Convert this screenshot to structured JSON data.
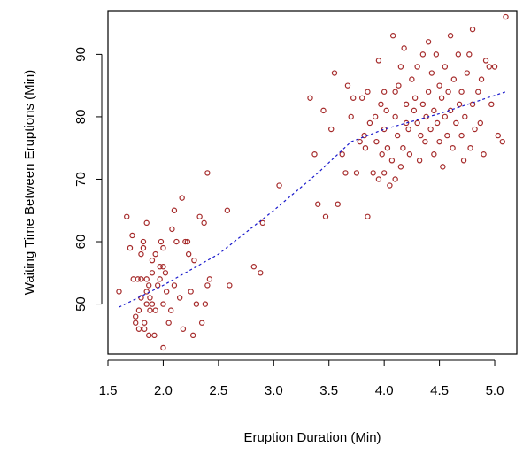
{
  "chart_data": {
    "type": "scatter",
    "xlabel": "Eruption Duration (Min)",
    "ylabel": "Waiting Time Between Eruptions (Min)",
    "xlim": [
      1.5,
      5.2
    ],
    "ylim": [
      42,
      97
    ],
    "x_ticks": [
      "1.5",
      "2.0",
      "2.5",
      "3.0",
      "3.5",
      "4.0",
      "4.5",
      "5.0"
    ],
    "y_ticks": [
      "50",
      "60",
      "70",
      "80",
      "90"
    ],
    "colors": {
      "points": "#a52a2a",
      "trend": "#1a1acc",
      "axis": "#000000"
    },
    "grid": false,
    "points": [
      [
        1.6,
        52
      ],
      [
        1.67,
        64
      ],
      [
        1.7,
        59
      ],
      [
        1.72,
        61
      ],
      [
        1.73,
        54
      ],
      [
        1.75,
        48
      ],
      [
        1.75,
        47
      ],
      [
        1.77,
        54
      ],
      [
        1.78,
        49
      ],
      [
        1.78,
        46
      ],
      [
        1.8,
        51
      ],
      [
        1.8,
        54
      ],
      [
        1.8,
        58
      ],
      [
        1.82,
        60
      ],
      [
        1.82,
        59
      ],
      [
        1.83,
        46
      ],
      [
        1.83,
        47
      ],
      [
        1.85,
        54
      ],
      [
        1.85,
        50
      ],
      [
        1.85,
        52
      ],
      [
        1.85,
        63
      ],
      [
        1.87,
        45
      ],
      [
        1.87,
        53
      ],
      [
        1.88,
        49
      ],
      [
        1.88,
        51
      ],
      [
        1.9,
        57
      ],
      [
        1.9,
        55
      ],
      [
        1.9,
        50
      ],
      [
        1.92,
        45
      ],
      [
        1.93,
        49
      ],
      [
        1.93,
        58
      ],
      [
        1.95,
        53
      ],
      [
        1.97,
        56
      ],
      [
        1.97,
        54
      ],
      [
        1.98,
        60
      ],
      [
        2.0,
        43
      ],
      [
        2.0,
        56
      ],
      [
        2.0,
        59
      ],
      [
        2.0,
        50
      ],
      [
        2.02,
        55
      ],
      [
        2.03,
        52
      ],
      [
        2.05,
        47
      ],
      [
        2.07,
        49
      ],
      [
        2.08,
        62
      ],
      [
        2.1,
        53
      ],
      [
        2.1,
        65
      ],
      [
        2.12,
        60
      ],
      [
        2.15,
        51
      ],
      [
        2.17,
        67
      ],
      [
        2.18,
        46
      ],
      [
        2.2,
        60
      ],
      [
        2.22,
        60
      ],
      [
        2.23,
        58
      ],
      [
        2.25,
        52
      ],
      [
        2.27,
        45
      ],
      [
        2.28,
        57
      ],
      [
        2.3,
        50
      ],
      [
        2.33,
        64
      ],
      [
        2.35,
        47
      ],
      [
        2.37,
        63
      ],
      [
        2.38,
        50
      ],
      [
        2.4,
        71
      ],
      [
        2.4,
        53
      ],
      [
        2.42,
        54
      ],
      [
        2.58,
        65
      ],
      [
        2.6,
        53
      ],
      [
        2.82,
        56
      ],
      [
        2.88,
        55
      ],
      [
        2.9,
        63
      ],
      [
        3.05,
        69
      ],
      [
        3.33,
        83
      ],
      [
        3.37,
        74
      ],
      [
        3.4,
        66
      ],
      [
        3.45,
        81
      ],
      [
        3.47,
        64
      ],
      [
        3.52,
        78
      ],
      [
        3.55,
        87
      ],
      [
        3.58,
        66
      ],
      [
        3.62,
        74
      ],
      [
        3.65,
        71
      ],
      [
        3.67,
        85
      ],
      [
        3.7,
        80
      ],
      [
        3.72,
        83
      ],
      [
        3.75,
        71
      ],
      [
        3.78,
        76
      ],
      [
        3.8,
        83
      ],
      [
        3.82,
        77
      ],
      [
        3.83,
        75
      ],
      [
        3.85,
        64
      ],
      [
        3.85,
        84
      ],
      [
        3.87,
        79
      ],
      [
        3.9,
        71
      ],
      [
        3.92,
        80
      ],
      [
        3.93,
        76
      ],
      [
        3.95,
        70
      ],
      [
        3.95,
        89
      ],
      [
        3.97,
        82
      ],
      [
        3.98,
        74
      ],
      [
        4.0,
        71
      ],
      [
        4.0,
        78
      ],
      [
        4.0,
        84
      ],
      [
        4.02,
        81
      ],
      [
        4.03,
        75
      ],
      [
        4.05,
        69
      ],
      [
        4.07,
        73
      ],
      [
        4.08,
        93
      ],
      [
        4.1,
        70
      ],
      [
        4.1,
        80
      ],
      [
        4.1,
        84
      ],
      [
        4.12,
        77
      ],
      [
        4.13,
        85
      ],
      [
        4.15,
        72
      ],
      [
        4.15,
        88
      ],
      [
        4.17,
        75
      ],
      [
        4.18,
        91
      ],
      [
        4.2,
        79
      ],
      [
        4.2,
        82
      ],
      [
        4.22,
        78
      ],
      [
        4.23,
        74
      ],
      [
        4.25,
        86
      ],
      [
        4.27,
        81
      ],
      [
        4.28,
        83
      ],
      [
        4.3,
        79
      ],
      [
        4.3,
        88
      ],
      [
        4.32,
        73
      ],
      [
        4.33,
        77
      ],
      [
        4.35,
        82
      ],
      [
        4.35,
        90
      ],
      [
        4.37,
        76
      ],
      [
        4.38,
        80
      ],
      [
        4.4,
        92
      ],
      [
        4.4,
        84
      ],
      [
        4.42,
        78
      ],
      [
        4.43,
        87
      ],
      [
        4.45,
        81
      ],
      [
        4.45,
        74
      ],
      [
        4.47,
        90
      ],
      [
        4.48,
        79
      ],
      [
        4.5,
        85
      ],
      [
        4.5,
        76
      ],
      [
        4.52,
        83
      ],
      [
        4.53,
        72
      ],
      [
        4.55,
        88
      ],
      [
        4.55,
        80
      ],
      [
        4.57,
        77
      ],
      [
        4.58,
        84
      ],
      [
        4.6,
        93
      ],
      [
        4.6,
        81
      ],
      [
        4.62,
        75
      ],
      [
        4.63,
        86
      ],
      [
        4.65,
        79
      ],
      [
        4.67,
        90
      ],
      [
        4.68,
        82
      ],
      [
        4.7,
        77
      ],
      [
        4.7,
        84
      ],
      [
        4.72,
        73
      ],
      [
        4.73,
        80
      ],
      [
        4.75,
        87
      ],
      [
        4.77,
        90
      ],
      [
        4.78,
        75
      ],
      [
        4.8,
        94
      ],
      [
        4.8,
        82
      ],
      [
        4.82,
        78
      ],
      [
        4.85,
        84
      ],
      [
        4.87,
        79
      ],
      [
        4.88,
        86
      ],
      [
        4.9,
        74
      ],
      [
        4.92,
        89
      ],
      [
        4.95,
        88
      ],
      [
        4.97,
        82
      ],
      [
        5.0,
        88
      ],
      [
        5.03,
        77
      ],
      [
        5.07,
        76
      ],
      [
        5.1,
        96
      ]
    ],
    "trend": [
      [
        1.6,
        49.5
      ],
      [
        2.0,
        53
      ],
      [
        2.5,
        58
      ],
      [
        3.0,
        65
      ],
      [
        3.4,
        71
      ],
      [
        3.7,
        76
      ],
      [
        4.0,
        78
      ],
      [
        4.5,
        80.5
      ],
      [
        5.1,
        84
      ]
    ]
  }
}
